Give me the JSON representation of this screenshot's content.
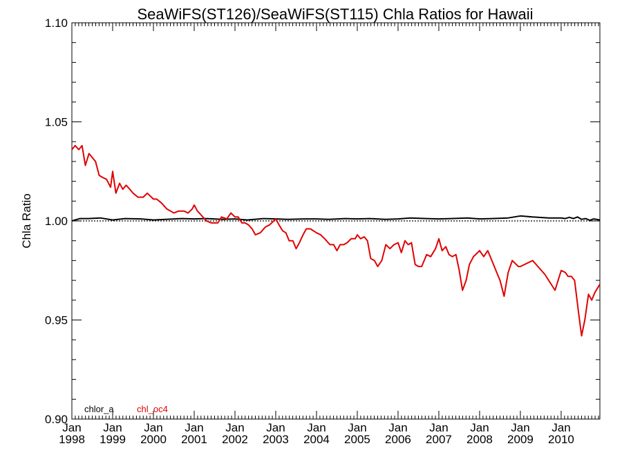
{
  "chart_data": {
    "type": "line",
    "title": "SeaWiFS(ST126)/SeaWiFS(ST115)  Chla Ratios for Hawaii",
    "xlabel": "",
    "ylabel": "Chla Ratio",
    "xlim": [
      1998.0,
      2010.95
    ],
    "ylim": [
      0.9,
      1.1
    ],
    "yticks": [
      {
        "value": 0.9,
        "label": "0.90"
      },
      {
        "value": 0.95,
        "label": "0.95"
      },
      {
        "value": 1.0,
        "label": "1.00"
      },
      {
        "value": 1.05,
        "label": "1.05"
      },
      {
        "value": 1.1,
        "label": "1.10"
      }
    ],
    "xticks": [
      {
        "value": 1998,
        "month": "Jan",
        "year": "1998"
      },
      {
        "value": 1999,
        "month": "Jan",
        "year": "1999"
      },
      {
        "value": 2000,
        "month": "Jan",
        "year": "2000"
      },
      {
        "value": 2001,
        "month": "Jan",
        "year": "2001"
      },
      {
        "value": 2002,
        "month": "Jan",
        "year": "2002"
      },
      {
        "value": 2003,
        "month": "Jan",
        "year": "2003"
      },
      {
        "value": 2004,
        "month": "Jan",
        "year": "2004"
      },
      {
        "value": 2005,
        "month": "Jan",
        "year": "2005"
      },
      {
        "value": 2006,
        "month": "Jan",
        "year": "2006"
      },
      {
        "value": 2007,
        "month": "Jan",
        "year": "2007"
      },
      {
        "value": 2008,
        "month": "Jan",
        "year": "2008"
      },
      {
        "value": 2009,
        "month": "Jan",
        "year": "2009"
      },
      {
        "value": 2010,
        "month": "Jan",
        "year": "2010"
      }
    ],
    "reference_lines": [
      1.0
    ],
    "legend": [
      {
        "name": "chlor_a",
        "color": "#000000"
      },
      {
        "name": "chl_oc4",
        "color": "#e00000"
      }
    ],
    "legend_position": "bottom-left",
    "series": [
      {
        "name": "chlor_a",
        "color": "#000000",
        "x": [
          1998.0,
          1998.2,
          1998.4,
          1998.7,
          1999.0,
          1999.3,
          1999.7,
          2000.0,
          2000.3,
          2000.7,
          2001.0,
          2001.3,
          2001.7,
          2002.0,
          2002.3,
          2002.7,
          2003.0,
          2003.3,
          2003.7,
          2004.0,
          2004.3,
          2004.7,
          2005.0,
          2005.3,
          2005.7,
          2006.0,
          2006.3,
          2006.7,
          2007.0,
          2007.3,
          2007.7,
          2008.0,
          2008.3,
          2008.7,
          2009.0,
          2009.3,
          2009.7,
          2010.0,
          2010.1,
          2010.2,
          2010.3,
          2010.4,
          2010.5,
          2010.6,
          2010.7,
          2010.8,
          2010.95
        ],
        "y": [
          1.0,
          1.0012,
          1.0012,
          1.0015,
          1.0005,
          1.0012,
          1.001,
          1.0005,
          1.0008,
          1.0012,
          1.001,
          1.0012,
          1.0008,
          1.001,
          1.0005,
          1.0012,
          1.001,
          1.0008,
          1.001,
          1.001,
          1.0008,
          1.0012,
          1.001,
          1.0012,
          1.0008,
          1.001,
          1.0015,
          1.0012,
          1.001,
          1.0012,
          1.0015,
          1.001,
          1.0012,
          1.0015,
          1.0025,
          1.002,
          1.0015,
          1.0015,
          1.0012,
          1.0018,
          1.0012,
          1.002,
          1.0008,
          1.0012,
          1.0003,
          1.001,
          1.0005
        ]
      },
      {
        "name": "chl_oc4",
        "color": "#e00000",
        "x": [
          1998.0,
          1998.08,
          1998.17,
          1998.25,
          1998.33,
          1998.42,
          1998.5,
          1998.58,
          1998.67,
          1998.75,
          1998.85,
          1998.95,
          1999.0,
          1999.08,
          1999.17,
          1999.25,
          1999.33,
          1999.42,
          1999.5,
          1999.62,
          1999.75,
          1999.85,
          2000.0,
          2000.08,
          2000.2,
          2000.33,
          2000.42,
          2000.5,
          2000.62,
          2000.75,
          2000.85,
          2000.95,
          2001.0,
          2001.08,
          2001.17,
          2001.3,
          2001.42,
          2001.5,
          2001.58,
          2001.67,
          2001.8,
          2001.9,
          2002.0,
          2002.08,
          2002.17,
          2002.25,
          2002.33,
          2002.42,
          2002.5,
          2002.62,
          2002.75,
          2002.85,
          2002.95,
          2003.0,
          2003.08,
          2003.17,
          2003.25,
          2003.33,
          2003.42,
          2003.5,
          2003.58,
          2003.67,
          2003.75,
          2003.85,
          2004.0,
          2004.1,
          2004.2,
          2004.33,
          2004.42,
          2004.5,
          2004.58,
          2004.67,
          2004.75,
          2004.85,
          2004.95,
          2005.0,
          2005.08,
          2005.17,
          2005.25,
          2005.33,
          2005.42,
          2005.5,
          2005.6,
          2005.7,
          2005.8,
          2005.9,
          2006.0,
          2006.08,
          2006.17,
          2006.25,
          2006.33,
          2006.42,
          2006.5,
          2006.58,
          2006.7,
          2006.8,
          2006.92,
          2007.0,
          2007.08,
          2007.17,
          2007.25,
          2007.33,
          2007.42,
          2007.5,
          2007.58,
          2007.67,
          2007.75,
          2007.85,
          2008.0,
          2008.1,
          2008.2,
          2008.3,
          2008.42,
          2008.5,
          2008.6,
          2008.7,
          2008.8,
          2008.95,
          2009.0,
          2009.3,
          2009.6,
          2009.85,
          2010.0,
          2010.1,
          2010.17,
          2010.25,
          2010.33,
          2010.42,
          2010.5,
          2010.58,
          2010.67,
          2010.75,
          2010.83,
          2010.95
        ]
      }
    ]
  }
}
